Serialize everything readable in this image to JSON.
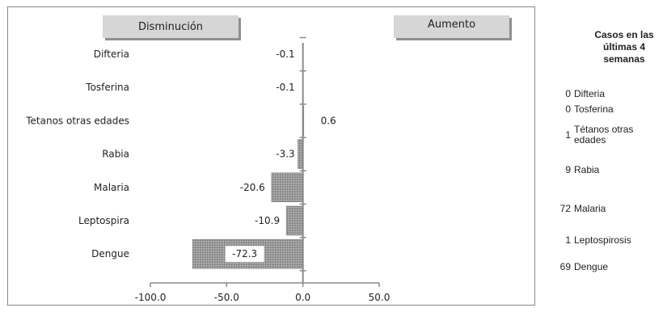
{
  "legend": {
    "decrease": "Disminución",
    "increase": "Aumento"
  },
  "chart_data": {
    "type": "bar",
    "orientation": "horizontal",
    "categories": [
      "Difteria",
      "Tosferina",
      "Tetanos otras edades",
      "Rabia",
      "Malaria",
      "Leptospira",
      "Dengue"
    ],
    "values": [
      -0.1,
      -0.1,
      0.6,
      -3.3,
      -20.6,
      -10.9,
      -72.3
    ],
    "value_labels": [
      "-0.1",
      "-0.1",
      "0.6",
      "-3.3",
      "-20.6",
      "-10.9",
      "-72.3"
    ],
    "x_ticks": [
      "-100.0",
      "-50.0",
      "0.0",
      "50.0"
    ],
    "xlim": [
      -100,
      50
    ],
    "grid": false,
    "bar_color": "#8c8c8c"
  },
  "side_panel": {
    "title": "Casos en las últimas 4 semanas",
    "rows": [
      {
        "count": "0",
        "name": "Difteria"
      },
      {
        "count": "0",
        "name": "Tosferina"
      },
      {
        "count": "1",
        "name": "Tétanos otras edades"
      },
      {
        "count": "9",
        "name": "Rabia"
      },
      {
        "count": "72",
        "name": "Malaria"
      },
      {
        "count": "1",
        "name": "Leptospirosis"
      },
      {
        "count": "69",
        "name": "Dengue"
      }
    ]
  }
}
